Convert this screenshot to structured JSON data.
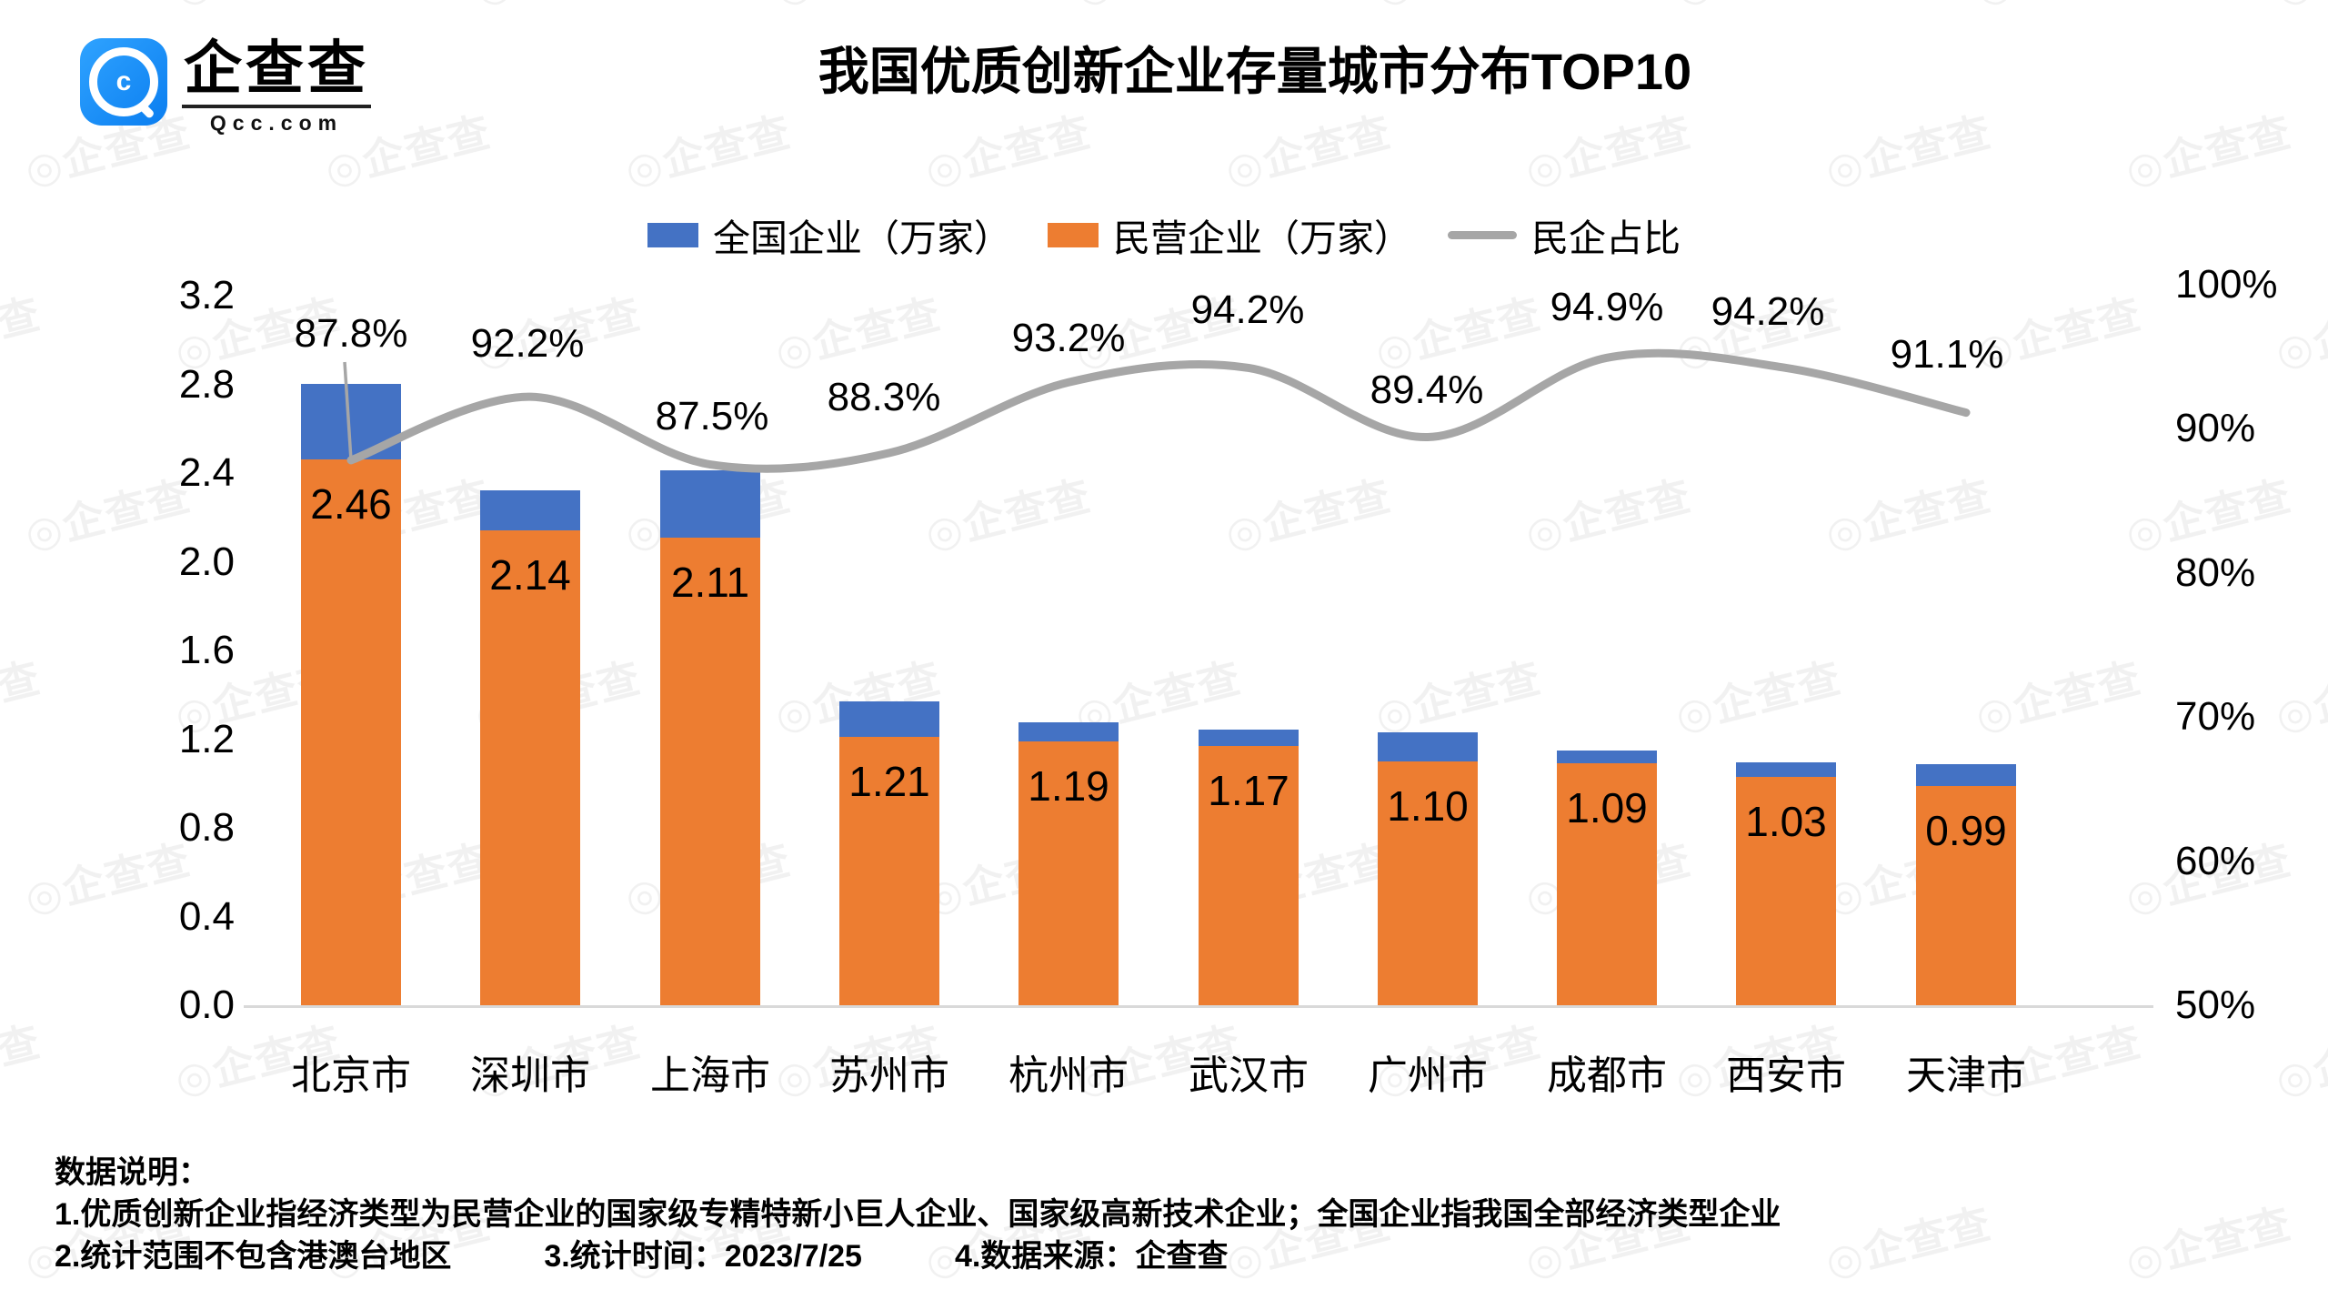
{
  "logo": {
    "wordmark": "企查查",
    "domain": "Qcc.com",
    "icon_glyph": "c"
  },
  "title": "我国优质创新企业存量城市分布TOP10",
  "legend": [
    {
      "label": "全国企业（万家）",
      "color": "#4472C4",
      "kind": "swatch"
    },
    {
      "label": "民营企业（万家）",
      "color": "#ED7D31",
      "kind": "swatch"
    },
    {
      "label": "民企占比",
      "color": "#A6A6A6",
      "kind": "line"
    }
  ],
  "axes": {
    "left_ticks": [
      "3.2",
      "2.8",
      "2.4",
      "2.0",
      "1.6",
      "1.2",
      "0.8",
      "0.4",
      "0.0"
    ],
    "right_ticks": [
      "100%",
      "90%",
      "80%",
      "70%",
      "60%",
      "50%"
    ]
  },
  "chart_data": {
    "type": "combo",
    "subtypes": [
      "stacked-column",
      "line"
    ],
    "title": "我国优质创新企业存量城市分布TOP10",
    "categories": [
      "北京市",
      "深圳市",
      "上海市",
      "苏州市",
      "杭州市",
      "武汉市",
      "广州市",
      "成都市",
      "西安市",
      "天津市"
    ],
    "series": [
      {
        "name": "民营企业（万家）",
        "type": "bar",
        "axis": "left",
        "color": "#ED7D31",
        "values": [
          2.46,
          2.14,
          2.11,
          1.21,
          1.19,
          1.17,
          1.1,
          1.09,
          1.03,
          0.99
        ],
        "data_labels_shown": true
      },
      {
        "name": "全国企业（万家）",
        "type": "bar",
        "axis": "left",
        "color": "#4472C4",
        "values_estimated_from_ratio": [
          2.8,
          2.32,
          2.41,
          1.37,
          1.28,
          1.24,
          1.23,
          1.15,
          1.09,
          1.09
        ],
        "data_labels_shown": false
      },
      {
        "name": "民企占比",
        "type": "line",
        "axis": "right",
        "color": "#A6A6A6",
        "smooth": true,
        "values_pct": [
          87.8,
          92.2,
          87.5,
          88.3,
          93.2,
          94.2,
          89.4,
          94.9,
          94.2,
          91.1
        ],
        "data_labels_shown": true
      }
    ],
    "left_axis": {
      "min": 0.0,
      "max": 3.2,
      "step": 0.4
    },
    "right_axis": {
      "min": 50,
      "max": 100,
      "step": 10,
      "format": "percent"
    },
    "grid": false,
    "legend_position": "top",
    "annotation": {
      "leader_line_on_first_point": true
    }
  },
  "notes": {
    "heading": "数据说明：",
    "line1": "1.优质创新企业指经济类型为民营企业的国家级专精特新小巨人企业、国家级高新技术企业；全国企业指我国全部经济类型企业",
    "line2": "2.统计范围不包含港澳台地区　　　3.统计时间：2023/7/25　　　4.数据来源：企查查"
  },
  "watermark": {
    "text": "◎企查查"
  },
  "colors": {
    "bar_national": "#4472C4",
    "bar_private": "#ED7D31",
    "ratio_line": "#A6A6A6",
    "axis_line": "#D9D9D9",
    "logo_blue": "#1b8df5"
  }
}
